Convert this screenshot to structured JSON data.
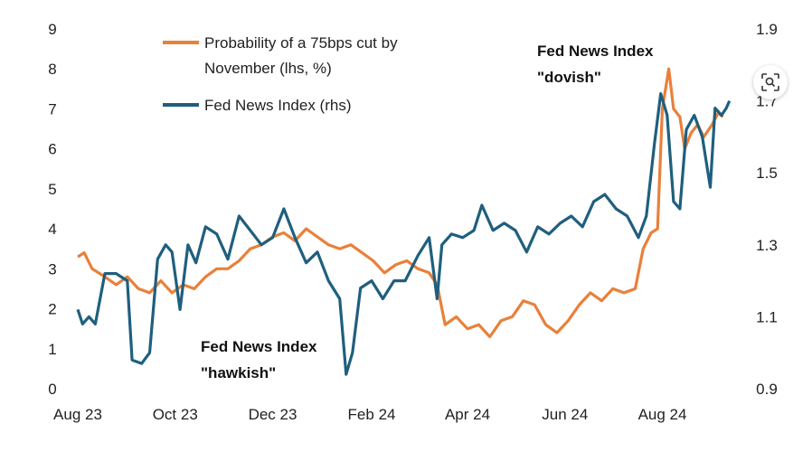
{
  "chart_data": {
    "type": "line",
    "x_ticks": [
      "Aug 23",
      "Oct 23",
      "Dec 23",
      "Feb 24",
      "Apr 24",
      "Jun 24",
      "Aug 24"
    ],
    "x_range_months": [
      "Aug 23",
      "Sep 24"
    ],
    "y_left": {
      "ticks": [
        "0",
        "1",
        "2",
        "3",
        "4",
        "5",
        "6",
        "7",
        "8",
        "9"
      ],
      "range": [
        0,
        9
      ],
      "unit": "%"
    },
    "y_right": {
      "ticks": [
        "0.9",
        "1.1",
        "1.3",
        "1.5",
        "1.7",
        "1.9"
      ],
      "range": [
        0.9,
        1.9
      ]
    },
    "grid": false,
    "legend_position": "top-left",
    "series": [
      {
        "name": "Probability of a 75bps cut by November (lhs, %)",
        "name_lines": [
          "Probability of a 75bps cut by",
          "November (lhs, %)"
        ],
        "axis": "left",
        "color": "#E9803A",
        "points": [
          [
            "2023-08-01",
            3.3
          ],
          [
            "2023-08-05",
            3.4
          ],
          [
            "2023-08-10",
            3.0
          ],
          [
            "2023-08-18",
            2.8
          ],
          [
            "2023-08-25",
            2.6
          ],
          [
            "2023-09-01",
            2.8
          ],
          [
            "2023-09-08",
            2.5
          ],
          [
            "2023-09-15",
            2.4
          ],
          [
            "2023-09-22",
            2.7
          ],
          [
            "2023-09-29",
            2.4
          ],
          [
            "2023-10-06",
            2.6
          ],
          [
            "2023-10-13",
            2.5
          ],
          [
            "2023-10-20",
            2.8
          ],
          [
            "2023-10-27",
            3.0
          ],
          [
            "2023-11-03",
            3.0
          ],
          [
            "2023-11-10",
            3.2
          ],
          [
            "2023-11-17",
            3.5
          ],
          [
            "2023-11-24",
            3.6
          ],
          [
            "2023-12-01",
            3.8
          ],
          [
            "2023-12-08",
            3.9
          ],
          [
            "2023-12-15",
            3.7
          ],
          [
            "2023-12-22",
            4.0
          ],
          [
            "2023-12-29",
            3.8
          ],
          [
            "2024-01-05",
            3.6
          ],
          [
            "2024-01-12",
            3.5
          ],
          [
            "2024-01-19",
            3.6
          ],
          [
            "2024-01-26",
            3.4
          ],
          [
            "2024-02-02",
            3.2
          ],
          [
            "2024-02-09",
            2.9
          ],
          [
            "2024-02-16",
            3.1
          ],
          [
            "2024-02-23",
            3.2
          ],
          [
            "2024-03-01",
            3.0
          ],
          [
            "2024-03-08",
            2.9
          ],
          [
            "2024-03-13",
            2.6
          ],
          [
            "2024-03-18",
            1.6
          ],
          [
            "2024-03-25",
            1.8
          ],
          [
            "2024-04-01",
            1.5
          ],
          [
            "2024-04-08",
            1.6
          ],
          [
            "2024-04-15",
            1.3
          ],
          [
            "2024-04-22",
            1.7
          ],
          [
            "2024-04-29",
            1.8
          ],
          [
            "2024-05-06",
            2.2
          ],
          [
            "2024-05-13",
            2.1
          ],
          [
            "2024-05-20",
            1.6
          ],
          [
            "2024-05-27",
            1.4
          ],
          [
            "2024-06-03",
            1.7
          ],
          [
            "2024-06-10",
            2.1
          ],
          [
            "2024-06-17",
            2.4
          ],
          [
            "2024-06-24",
            2.2
          ],
          [
            "2024-07-01",
            2.5
          ],
          [
            "2024-07-08",
            2.4
          ],
          [
            "2024-07-15",
            2.5
          ],
          [
            "2024-07-20",
            3.5
          ],
          [
            "2024-07-25",
            3.9
          ],
          [
            "2024-07-29",
            4.0
          ],
          [
            "2024-08-01",
            7.0
          ],
          [
            "2024-08-05",
            8.0
          ],
          [
            "2024-08-08",
            7.0
          ],
          [
            "2024-08-12",
            6.8
          ],
          [
            "2024-08-15",
            6.0
          ],
          [
            "2024-08-19",
            6.4
          ],
          [
            "2024-08-23",
            6.6
          ],
          [
            "2024-08-27",
            6.3
          ],
          [
            "2024-09-01",
            6.6
          ],
          [
            "2024-09-05",
            6.9
          ],
          [
            "2024-09-08",
            6.8
          ]
        ]
      },
      {
        "name": "Fed News Index (rhs)",
        "axis": "right",
        "color": "#1F5F7E",
        "points": [
          [
            "2023-08-01",
            1.12
          ],
          [
            "2023-08-04",
            1.08
          ],
          [
            "2023-08-08",
            1.1
          ],
          [
            "2023-08-12",
            1.08
          ],
          [
            "2023-08-18",
            1.22
          ],
          [
            "2023-08-25",
            1.22
          ],
          [
            "2023-09-01",
            1.2
          ],
          [
            "2023-09-04",
            0.98
          ],
          [
            "2023-09-10",
            0.97
          ],
          [
            "2023-09-15",
            1.0
          ],
          [
            "2023-09-20",
            1.26
          ],
          [
            "2023-09-25",
            1.3
          ],
          [
            "2023-09-29",
            1.28
          ],
          [
            "2023-10-04",
            1.12
          ],
          [
            "2023-10-09",
            1.3
          ],
          [
            "2023-10-14",
            1.25
          ],
          [
            "2023-10-20",
            1.35
          ],
          [
            "2023-10-27",
            1.33
          ],
          [
            "2023-11-03",
            1.26
          ],
          [
            "2023-11-10",
            1.38
          ],
          [
            "2023-11-17",
            1.34
          ],
          [
            "2023-11-24",
            1.3
          ],
          [
            "2023-12-01",
            1.32
          ],
          [
            "2023-12-08",
            1.4
          ],
          [
            "2023-12-15",
            1.32
          ],
          [
            "2023-12-22",
            1.25
          ],
          [
            "2023-12-29",
            1.28
          ],
          [
            "2024-01-05",
            1.2
          ],
          [
            "2024-01-12",
            1.15
          ],
          [
            "2024-01-16",
            0.94
          ],
          [
            "2024-01-20",
            1.0
          ],
          [
            "2024-01-25",
            1.18
          ],
          [
            "2024-02-01",
            1.2
          ],
          [
            "2024-02-08",
            1.15
          ],
          [
            "2024-02-15",
            1.2
          ],
          [
            "2024-02-22",
            1.2
          ],
          [
            "2024-03-01",
            1.27
          ],
          [
            "2024-03-08",
            1.32
          ],
          [
            "2024-03-13",
            1.15
          ],
          [
            "2024-03-16",
            1.3
          ],
          [
            "2024-03-22",
            1.33
          ],
          [
            "2024-03-29",
            1.32
          ],
          [
            "2024-04-05",
            1.34
          ],
          [
            "2024-04-10",
            1.41
          ],
          [
            "2024-04-17",
            1.34
          ],
          [
            "2024-04-24",
            1.36
          ],
          [
            "2024-05-01",
            1.34
          ],
          [
            "2024-05-08",
            1.28
          ],
          [
            "2024-05-15",
            1.35
          ],
          [
            "2024-05-22",
            1.33
          ],
          [
            "2024-05-29",
            1.36
          ],
          [
            "2024-06-05",
            1.38
          ],
          [
            "2024-06-12",
            1.35
          ],
          [
            "2024-06-19",
            1.42
          ],
          [
            "2024-06-26",
            1.44
          ],
          [
            "2024-07-03",
            1.4
          ],
          [
            "2024-07-10",
            1.38
          ],
          [
            "2024-07-17",
            1.32
          ],
          [
            "2024-07-22",
            1.38
          ],
          [
            "2024-07-27",
            1.58
          ],
          [
            "2024-07-31",
            1.72
          ],
          [
            "2024-08-04",
            1.66
          ],
          [
            "2024-08-08",
            1.42
          ],
          [
            "2024-08-12",
            1.4
          ],
          [
            "2024-08-16",
            1.62
          ],
          [
            "2024-08-21",
            1.66
          ],
          [
            "2024-08-26",
            1.6
          ],
          [
            "2024-08-31",
            1.46
          ],
          [
            "2024-09-03",
            1.68
          ],
          [
            "2024-09-07",
            1.66
          ],
          [
            "2024-09-10",
            1.68
          ],
          [
            "2024-09-12",
            1.7
          ]
        ]
      }
    ],
    "annotations": [
      {
        "lines": [
          "Fed News Index",
          "\"dovish\""
        ],
        "near": "top-right"
      },
      {
        "lines": [
          "Fed News Index",
          "\"hawkish\""
        ],
        "near": "bottom-center"
      }
    ]
  },
  "lens_button": {
    "icon": "lens-search-icon"
  }
}
